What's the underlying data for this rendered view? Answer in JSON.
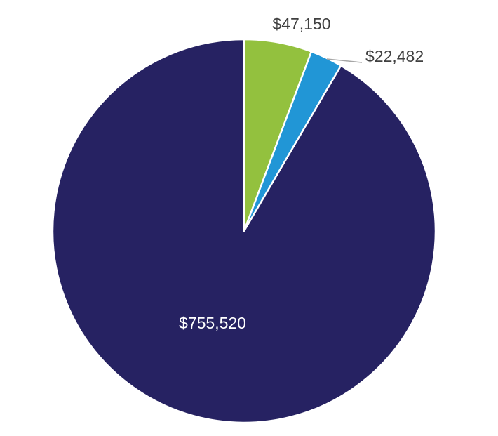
{
  "chart_data": {
    "type": "pie",
    "title": "",
    "start_angle_deg": 0,
    "direction": "clockwise",
    "slices": [
      {
        "label": "$47,150",
        "value": 47150,
        "color": "#93c13e",
        "label_color": "#404040"
      },
      {
        "label": "$22,482",
        "value": 22482,
        "color": "#2196d6",
        "label_color": "#404040"
      },
      {
        "label": "$755,520",
        "value": 755520,
        "color": "#262262",
        "label_color": "#ffffff"
      }
    ],
    "legend": "none",
    "slice_border_color": "#ffffff",
    "leader_line_color": "#a6a6a6"
  }
}
